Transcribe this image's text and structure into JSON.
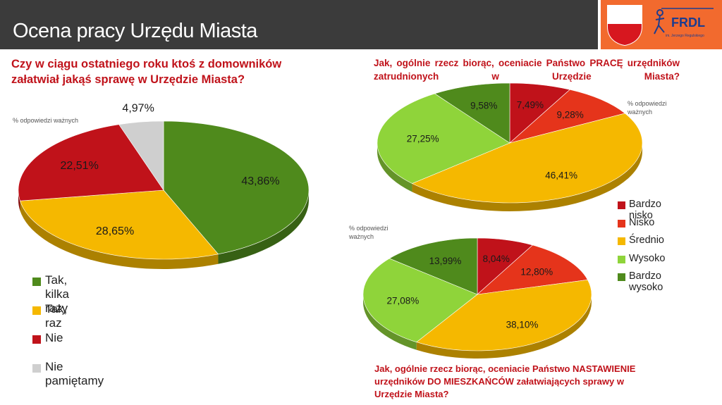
{
  "header": {
    "title": "Ocena pracy Urzędu Miasta"
  },
  "logo": {
    "text": "FRDL",
    "subtext": "im. Jerzego Regulskiego",
    "colors": {
      "background": "#f26a2e",
      "crest_top": "#ffffff",
      "crest_bottom": "#d7171f",
      "logo_blue": "#1d3c8f"
    }
  },
  "notes": {
    "valid_answers": "% odpowiedzi ważnych"
  },
  "colors": {
    "green_dark": "#4f8a1c",
    "yellow": "#f5b800",
    "red_dark": "#c0121a",
    "grey": "#cfcfcf",
    "red": "#e5341b",
    "green_light": "#8fd43a",
    "title_red": "#c0121a"
  },
  "legends": {
    "chart1": [
      "Tak, kilka razy",
      "Tak, raz",
      "Nie",
      "Nie pamiętamy"
    ],
    "chart2": [
      "Bardzo nisko",
      "Nisko",
      "Średnio",
      "Wysoko",
      "Bardzo wysoko"
    ]
  },
  "chart_data": [
    {
      "type": "pie",
      "title": "Czy w ciągu ostatniego roku ktoś z domowników załatwiał jakąś sprawę w Urzędzie Miasta?",
      "note": "% odpowiedzi ważnych",
      "categories": [
        "Tak, kilka razy",
        "Tak, raz",
        "Nie",
        "Nie pamiętamy"
      ],
      "values": [
        43.86,
        28.65,
        22.51,
        4.97
      ],
      "labels": [
        "43,86%",
        "28,65%",
        "22,51%",
        "4,97%"
      ],
      "colors": [
        "#4f8a1c",
        "#f5b800",
        "#c0121a",
        "#cfcfcf"
      ],
      "legend": "bottom-left"
    },
    {
      "type": "pie",
      "title": "Jak, ogólnie rzecz biorąc, oceniacie Państwo PRACĘ urzędników zatrudnionych w Urzędzie Miasta?",
      "note": "% odpowiedzi ważnych",
      "categories": [
        "Bardzo nisko",
        "Nisko",
        "Średnio",
        "Wysoko",
        "Bardzo wysoko"
      ],
      "values": [
        7.49,
        9.28,
        46.41,
        27.25,
        9.58
      ],
      "labels": [
        "7,49%",
        "9,28%",
        "46,41%",
        "27,25%",
        "9,58%"
      ],
      "colors": [
        "#c0121a",
        "#e5341b",
        "#f5b800",
        "#8fd43a",
        "#4f8a1c"
      ],
      "legend": "right"
    },
    {
      "type": "pie",
      "title": "Jak, ogólnie rzecz biorąc, oceniacie Państwo NASTAWIENIE urzędników DO MIESZKAŃCÓW załatwiających sprawy w Urzędzie Miasta?",
      "note": "% odpowiedzi ważnych",
      "categories": [
        "Bardzo nisko",
        "Nisko",
        "Średnio",
        "Wysoko",
        "Bardzo wysoko"
      ],
      "values": [
        8.04,
        12.8,
        38.1,
        27.08,
        13.99
      ],
      "labels": [
        "8,04%",
        "12,80%",
        "38,10%",
        "27,08%",
        "13,99%"
      ],
      "colors": [
        "#c0121a",
        "#e5341b",
        "#f5b800",
        "#8fd43a",
        "#4f8a1c"
      ],
      "legend": "right"
    }
  ]
}
